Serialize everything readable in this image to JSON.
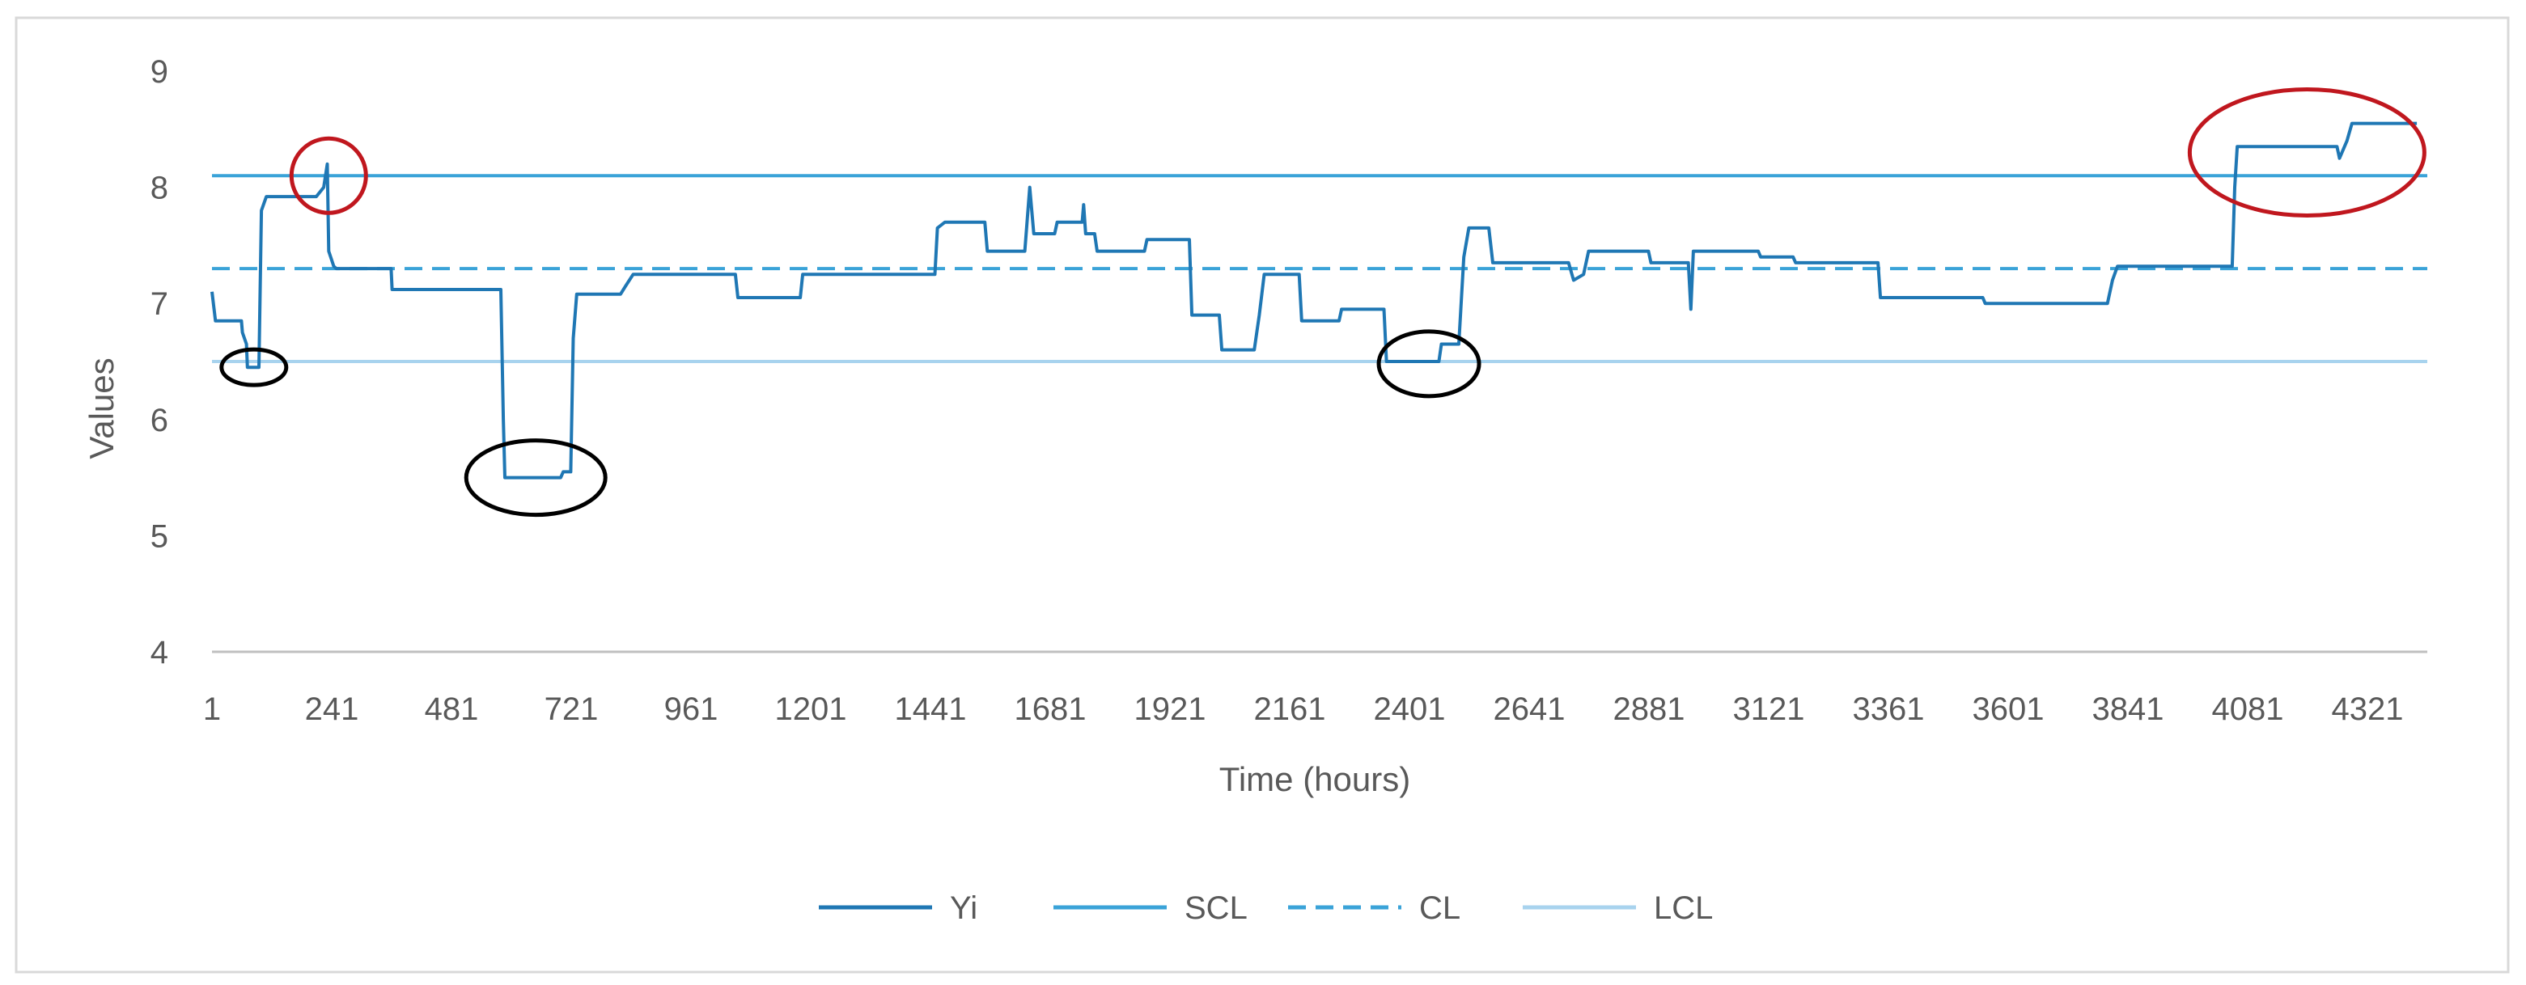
{
  "chart_data": {
    "type": "line",
    "xlabel": "Time (hours)",
    "ylabel": "Values",
    "ylim": [
      4,
      9
    ],
    "xlim": [
      1,
      4441
    ],
    "y_ticks": [
      4,
      5,
      6,
      7,
      8,
      9
    ],
    "x_ticks": [
      1,
      241,
      481,
      721,
      961,
      1201,
      1441,
      1681,
      1921,
      2161,
      2401,
      2641,
      2881,
      3121,
      3361,
      3601,
      3841,
      4081,
      4321
    ],
    "grid": false,
    "legend_position": "bottom",
    "colors": {
      "Yi": "#1f77b4",
      "SCL": "#3aa3d8",
      "CL": "#3aa3d8",
      "LCL": "#a8d3ee",
      "red_marker": "#c0171e",
      "black_marker": "#000000",
      "axis": "#bfbfbf"
    },
    "legend": [
      {
        "name": "Yi",
        "style": "solid"
      },
      {
        "name": "SCL",
        "style": "solid"
      },
      {
        "name": "CL",
        "style": "dashed"
      },
      {
        "name": "LCL",
        "style": "solid"
      }
    ],
    "series": [
      {
        "name": "Yi",
        "points": [
          [
            1,
            7.1
          ],
          [
            8,
            6.85
          ],
          [
            60,
            6.85
          ],
          [
            62,
            6.75
          ],
          [
            70,
            6.65
          ],
          [
            72,
            6.45
          ],
          [
            95,
            6.45
          ],
          [
            100,
            7.8
          ],
          [
            110,
            7.92
          ],
          [
            210,
            7.92
          ],
          [
            225,
            8.0
          ],
          [
            232,
            8.2
          ],
          [
            235,
            7.45
          ],
          [
            245,
            7.32
          ],
          [
            250,
            7.3
          ],
          [
            360,
            7.3
          ],
          [
            362,
            7.12
          ],
          [
            580,
            7.12
          ],
          [
            585,
            6.0
          ],
          [
            588,
            5.5
          ],
          [
            700,
            5.5
          ],
          [
            705,
            5.55
          ],
          [
            720,
            5.55
          ],
          [
            725,
            6.7
          ],
          [
            732,
            7.08
          ],
          [
            820,
            7.08
          ],
          [
            830,
            7.15
          ],
          [
            845,
            7.25
          ],
          [
            1050,
            7.25
          ],
          [
            1055,
            7.05
          ],
          [
            1180,
            7.05
          ],
          [
            1185,
            7.25
          ],
          [
            1450,
            7.25
          ],
          [
            1455,
            7.65
          ],
          [
            1470,
            7.7
          ],
          [
            1550,
            7.7
          ],
          [
            1555,
            7.45
          ],
          [
            1630,
            7.45
          ],
          [
            1640,
            8.0
          ],
          [
            1648,
            7.6
          ],
          [
            1690,
            7.6
          ],
          [
            1695,
            7.7
          ],
          [
            1745,
            7.7
          ],
          [
            1748,
            7.85
          ],
          [
            1752,
            7.6
          ],
          [
            1770,
            7.6
          ],
          [
            1775,
            7.45
          ],
          [
            1870,
            7.45
          ],
          [
            1875,
            7.55
          ],
          [
            1960,
            7.55
          ],
          [
            1965,
            6.9
          ],
          [
            2020,
            6.9
          ],
          [
            2025,
            6.6
          ],
          [
            2090,
            6.6
          ],
          [
            2100,
            6.9
          ],
          [
            2110,
            7.25
          ],
          [
            2180,
            7.25
          ],
          [
            2185,
            6.85
          ],
          [
            2260,
            6.85
          ],
          [
            2265,
            6.95
          ],
          [
            2350,
            6.95
          ],
          [
            2355,
            6.5
          ],
          [
            2460,
            6.5
          ],
          [
            2465,
            6.65
          ],
          [
            2500,
            6.65
          ],
          [
            2510,
            7.4
          ],
          [
            2520,
            7.65
          ],
          [
            2560,
            7.65
          ],
          [
            2568,
            7.35
          ],
          [
            2720,
            7.35
          ],
          [
            2730,
            7.2
          ],
          [
            2750,
            7.25
          ],
          [
            2760,
            7.45
          ],
          [
            2880,
            7.45
          ],
          [
            2885,
            7.35
          ],
          [
            2960,
            7.35
          ],
          [
            2965,
            6.95
          ],
          [
            2970,
            7.45
          ],
          [
            3100,
            7.45
          ],
          [
            3105,
            7.4
          ],
          [
            3170,
            7.4
          ],
          [
            3175,
            7.35
          ],
          [
            3340,
            7.35
          ],
          [
            3345,
            7.05
          ],
          [
            3550,
            7.05
          ],
          [
            3555,
            7.0
          ],
          [
            3800,
            7.0
          ],
          [
            3810,
            7.2
          ],
          [
            3820,
            7.32
          ],
          [
            4050,
            7.32
          ],
          [
            4055,
            8.0
          ],
          [
            4060,
            8.35
          ],
          [
            4260,
            8.35
          ],
          [
            4265,
            8.25
          ],
          [
            4280,
            8.4
          ],
          [
            4290,
            8.55
          ],
          [
            4420,
            8.55
          ]
        ]
      },
      {
        "name": "SCL",
        "value": 8.1
      },
      {
        "name": "CL",
        "value": 7.3
      },
      {
        "name": "LCL",
        "value": 6.5
      }
    ],
    "highlights": [
      {
        "color": "red",
        "x": 235,
        "y": 8.1
      },
      {
        "color": "red",
        "x": 4200,
        "y": 8.3
      },
      {
        "color": "black",
        "x": 85,
        "y": 6.45
      },
      {
        "color": "black",
        "x": 650,
        "y": 5.5
      },
      {
        "color": "black",
        "x": 2440,
        "y": 6.48
      }
    ]
  }
}
